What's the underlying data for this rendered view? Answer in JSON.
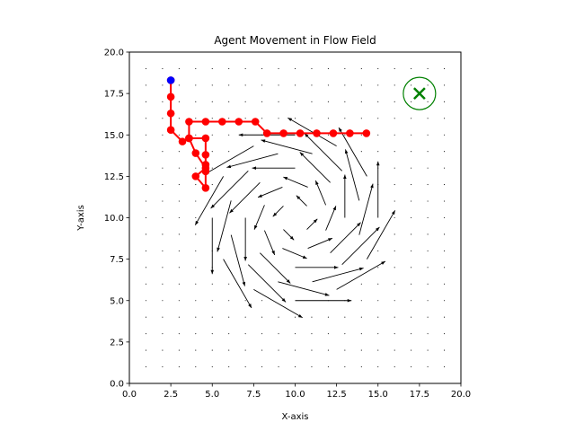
{
  "chart_data": {
    "type": "line",
    "title": "Agent Movement in Flow Field",
    "xlabel": "X-axis",
    "ylabel": "Y-axis",
    "xlim": [
      0,
      20
    ],
    "ylim": [
      0,
      20
    ],
    "x_ticks": [
      "0.0",
      "2.5",
      "5.0",
      "7.5",
      "10.0",
      "12.5",
      "15.0",
      "17.5",
      "20.0"
    ],
    "y_ticks": [
      "0.0",
      "2.5",
      "5.0",
      "7.5",
      "10.0",
      "12.5",
      "15.0",
      "17.5",
      "20.0"
    ],
    "grid": false,
    "path_color": "#ff0000",
    "start_color": "#0000ff",
    "goal_color": "#008000",
    "arrow_color": "#000000",
    "start_point": [
      2.5,
      18.3
    ],
    "goal_point": [
      17.5,
      17.5
    ],
    "path": [
      [
        2.5,
        18.3
      ],
      [
        2.5,
        17.3
      ],
      [
        2.5,
        16.3
      ],
      [
        2.5,
        15.3
      ],
      [
        3.2,
        14.6
      ],
      [
        3.6,
        14.8
      ],
      [
        4.6,
        14.8
      ],
      [
        4.6,
        13.8
      ],
      [
        4.6,
        13.2
      ],
      [
        4.6,
        12.8
      ],
      [
        4.6,
        11.8
      ],
      [
        4.0,
        12.5
      ],
      [
        4.6,
        13.0
      ],
      [
        4.0,
        13.9
      ],
      [
        3.6,
        14.8
      ],
      [
        3.6,
        15.8
      ],
      [
        4.6,
        15.8
      ],
      [
        5.6,
        15.8
      ],
      [
        6.6,
        15.8
      ],
      [
        7.6,
        15.8
      ],
      [
        8.3,
        15.1
      ],
      [
        9.3,
        15.1
      ],
      [
        10.3,
        15.1
      ],
      [
        11.3,
        15.1
      ],
      [
        12.3,
        15.1
      ],
      [
        13.3,
        15.1
      ],
      [
        14.3,
        15.1
      ]
    ],
    "vortex_center": [
      10,
      10
    ],
    "grid_spacing": 1
  }
}
